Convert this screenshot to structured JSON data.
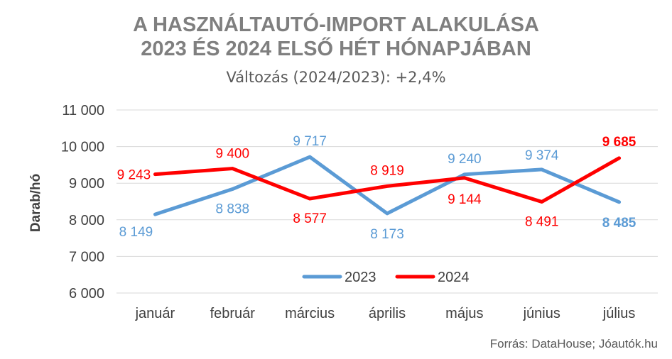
{
  "title_line1": "A HASZNÁLTAUTÓ-IMPORT ALAKULÁSA",
  "title_line2": "2023 ÉS 2024 ELSŐ HÉT HÓNAPJÁBAN",
  "subtitle": "Változás (2024/2023): +2,4%",
  "source": "Forrás: DataHouse; Jóautók.hu",
  "chart_data": {
    "type": "line",
    "ylabel": "Darab/hó",
    "ylim": [
      6000,
      11000
    ],
    "yticks": [
      6000,
      7000,
      8000,
      9000,
      10000,
      11000
    ],
    "ytick_labels": [
      "6 000",
      "7 000",
      "8 000",
      "9 000",
      "10 000",
      "11 000"
    ],
    "grid": true,
    "legend_position": "bottom-center",
    "categories": [
      "január",
      "február",
      "március",
      "április",
      "május",
      "június",
      "július"
    ],
    "series": [
      {
        "name": "2023",
        "color": "#5b9bd5",
        "values": [
          8149,
          8838,
          9717,
          8173,
          9240,
          9374,
          8485
        ],
        "labels": [
          "8 149",
          "8 838",
          "9 717",
          "8 173",
          "9 240",
          "9 374",
          "8 485"
        ]
      },
      {
        "name": "2024",
        "color": "#ff0000",
        "values": [
          9243,
          9400,
          8577,
          8919,
          9144,
          8491,
          9685
        ],
        "labels": [
          "9 243",
          "9 400",
          "8 577",
          "8 919",
          "9 144",
          "8 491",
          "9 685"
        ]
      }
    ]
  }
}
